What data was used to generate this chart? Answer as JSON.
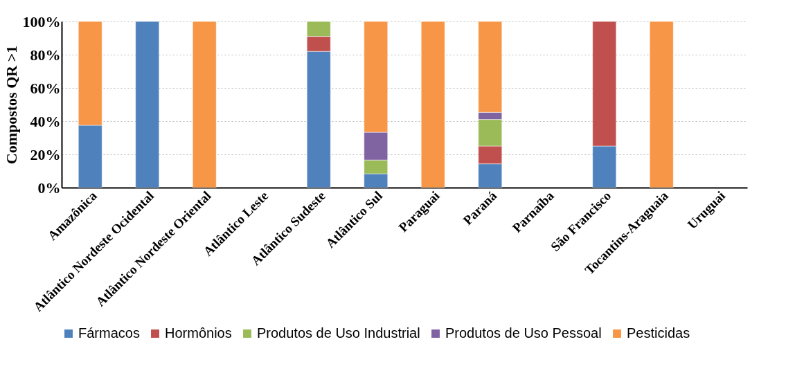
{
  "chart_data": {
    "type": "bar",
    "stacked": true,
    "ylabel": "Compostos QR >1",
    "categories": [
      "Amazônica",
      "Atlântico Nordeste Ocidental",
      "Atlântico Nordeste Oriental",
      "Atlântico Leste",
      "Atlântico Sudeste",
      "Atlântico Sul",
      "Paraguai",
      "Paraná",
      "Parnaíba",
      "São Francisco",
      "Tocantins-Araguaia",
      "Uruguai"
    ],
    "series": [
      {
        "name": "Fármacos",
        "color": "#4f81bd",
        "values": [
          37.5,
          100,
          null,
          null,
          82,
          8.3,
          null,
          14.3,
          null,
          25,
          null,
          null
        ]
      },
      {
        "name": "Hormônios",
        "color": "#c0504d",
        "values": [
          null,
          null,
          null,
          null,
          9,
          null,
          null,
          10.7,
          null,
          75,
          null,
          null
        ]
      },
      {
        "name": "Produtos de Uso Industrial",
        "color": "#9bbb59",
        "values": [
          null,
          null,
          null,
          null,
          9,
          8.3,
          null,
          16,
          null,
          null,
          null,
          null
        ]
      },
      {
        "name": "Produtos de Uso Pessoal",
        "color": "#8064a2",
        "values": [
          null,
          null,
          null,
          null,
          null,
          16.7,
          null,
          4.3,
          null,
          null,
          null,
          null
        ]
      },
      {
        "name": "Pesticidas",
        "color": "#f79646",
        "values": [
          62.5,
          null,
          100,
          null,
          null,
          66.7,
          100,
          54.7,
          null,
          null,
          100,
          null
        ]
      }
    ],
    "ylim": [
      0,
      100
    ],
    "yticks": [
      {
        "value": 0,
        "label": "0%"
      },
      {
        "value": 20,
        "label": "20%"
      },
      {
        "value": 40,
        "label": "40%"
      },
      {
        "value": 60,
        "label": "60%"
      },
      {
        "value": 80,
        "label": "80%"
      },
      {
        "value": 100,
        "label": "100%"
      }
    ],
    "grid": "y",
    "legend": "bottom"
  }
}
